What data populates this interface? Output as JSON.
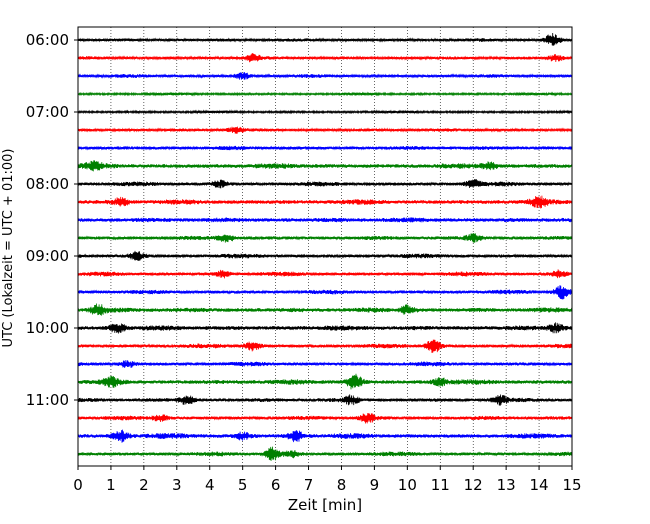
{
  "chart_data": {
    "type": "line",
    "description_kind": "helicorder",
    "xlabel": "Zeit  [min]",
    "ylabel": "UTC (Lokalzeit = UTC + 01:00)",
    "xlim": [
      0,
      15
    ],
    "x_ticks": [
      "0",
      "1",
      "2",
      "3",
      "4",
      "5",
      "6",
      "7",
      "8",
      "9",
      "10",
      "11",
      "12",
      "13",
      "14",
      "15"
    ],
    "y_tick_labels": [
      "06:00",
      "07:00",
      "08:00",
      "09:00",
      "10:00",
      "11:00"
    ],
    "grid": "vertical dotted at each minute",
    "trace_interval_minutes": 15,
    "trace_colors_cycle": [
      "#000000",
      "#ff0000",
      "#0000ff",
      "#008000"
    ],
    "traces": [
      {
        "start": "06:00",
        "color": "#000000",
        "level": 2,
        "events": [
          {
            "t": 14.4,
            "amp": 6
          }
        ]
      },
      {
        "start": "06:15",
        "color": "#ff0000",
        "level": 2,
        "events": [
          {
            "t": 5.3,
            "amp": 3.5
          },
          {
            "t": 14.5,
            "amp": 3
          }
        ]
      },
      {
        "start": "06:30",
        "color": "#0000ff",
        "level": 2,
        "events": [
          {
            "t": 5.0,
            "amp": 3
          }
        ]
      },
      {
        "start": "06:45",
        "color": "#008000",
        "level": 1.5,
        "events": []
      },
      {
        "start": "07:00",
        "color": "#000000",
        "level": 1.5,
        "events": []
      },
      {
        "start": "07:15",
        "color": "#ff0000",
        "level": 2,
        "events": [
          {
            "t": 4.8,
            "amp": 3
          }
        ]
      },
      {
        "start": "07:30",
        "color": "#0000ff",
        "level": 2.5,
        "events": []
      },
      {
        "start": "07:45",
        "color": "#008000",
        "level": 3,
        "events": [
          {
            "t": 0.5,
            "amp": 3
          },
          {
            "t": 12.5,
            "amp": 3
          }
        ]
      },
      {
        "start": "08:00",
        "color": "#000000",
        "level": 2.5,
        "events": [
          {
            "t": 4.3,
            "amp": 3.5
          },
          {
            "t": 12.0,
            "amp": 4
          }
        ]
      },
      {
        "start": "08:15",
        "color": "#ff0000",
        "level": 3,
        "events": [
          {
            "t": 1.3,
            "amp": 4
          },
          {
            "t": 14.0,
            "amp": 4
          }
        ]
      },
      {
        "start": "08:30",
        "color": "#0000ff",
        "level": 3,
        "events": []
      },
      {
        "start": "08:45",
        "color": "#008000",
        "level": 2.5,
        "events": [
          {
            "t": 4.5,
            "amp": 3.5
          },
          {
            "t": 12.0,
            "amp": 3.5
          }
        ]
      },
      {
        "start": "09:00",
        "color": "#000000",
        "level": 2.5,
        "events": [
          {
            "t": 1.8,
            "amp": 4
          }
        ]
      },
      {
        "start": "09:15",
        "color": "#ff0000",
        "level": 2.5,
        "events": [
          {
            "t": 4.4,
            "amp": 3
          },
          {
            "t": 14.6,
            "amp": 3.5
          }
        ]
      },
      {
        "start": "09:30",
        "color": "#0000ff",
        "level": 2.5,
        "events": [
          {
            "t": 14.7,
            "amp": 6
          }
        ]
      },
      {
        "start": "09:45",
        "color": "#008000",
        "level": 3,
        "events": [
          {
            "t": 0.6,
            "amp": 5
          },
          {
            "t": 10.0,
            "amp": 4
          }
        ]
      },
      {
        "start": "10:00",
        "color": "#000000",
        "level": 3,
        "events": [
          {
            "t": 1.2,
            "amp": 4.5
          },
          {
            "t": 14.5,
            "amp": 4
          }
        ]
      },
      {
        "start": "10:15",
        "color": "#ff0000",
        "level": 2.5,
        "events": [
          {
            "t": 10.8,
            "amp": 6
          },
          {
            "t": 5.3,
            "amp": 4
          }
        ]
      },
      {
        "start": "10:30",
        "color": "#0000ff",
        "level": 2.5,
        "events": [
          {
            "t": 1.5,
            "amp": 3
          }
        ]
      },
      {
        "start": "10:45",
        "color": "#008000",
        "level": 3,
        "events": [
          {
            "t": 1.0,
            "amp": 4
          },
          {
            "t": 8.4,
            "amp": 7
          },
          {
            "t": 11.0,
            "amp": 3.5
          }
        ]
      },
      {
        "start": "11:00",
        "color": "#000000",
        "level": 2.5,
        "events": [
          {
            "t": 3.3,
            "amp": 4
          },
          {
            "t": 8.3,
            "amp": 4
          },
          {
            "t": 12.8,
            "amp": 4
          }
        ]
      },
      {
        "start": "11:15",
        "color": "#ff0000",
        "level": 2.5,
        "events": [
          {
            "t": 8.8,
            "amp": 4.5
          },
          {
            "t": 2.5,
            "amp": 3
          }
        ]
      },
      {
        "start": "11:30",
        "color": "#0000ff",
        "level": 3,
        "events": [
          {
            "t": 1.3,
            "amp": 5
          },
          {
            "t": 5.0,
            "amp": 3.5
          },
          {
            "t": 6.6,
            "amp": 5
          }
        ]
      },
      {
        "start": "11:45",
        "color": "#008000",
        "level": 2.5,
        "events": [
          {
            "t": 5.9,
            "amp": 6
          },
          {
            "t": 6.5,
            "amp": 3
          }
        ]
      }
    ]
  }
}
